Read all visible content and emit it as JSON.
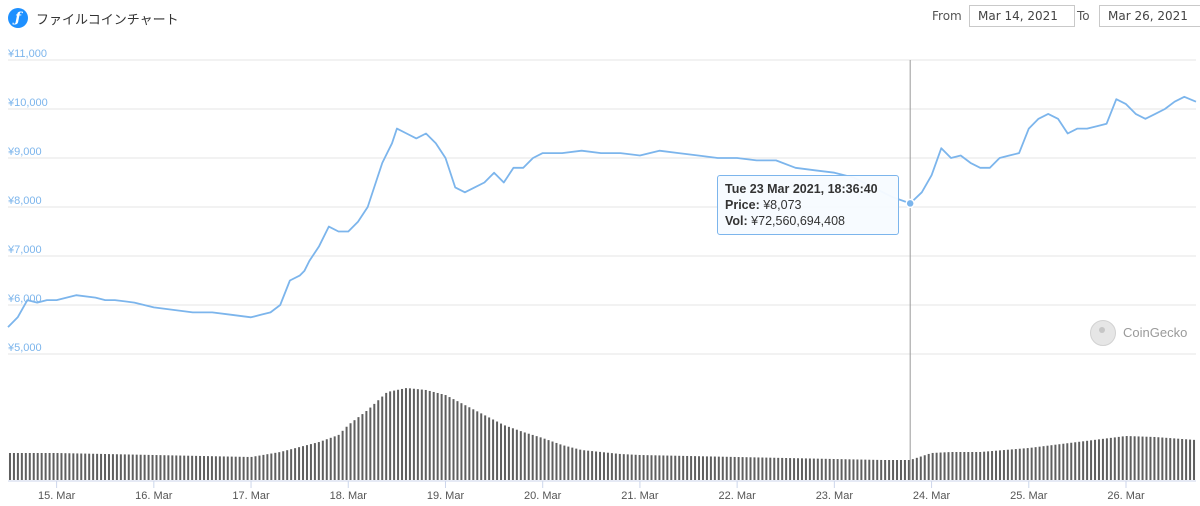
{
  "header": {
    "title": "ファイルコインチャート",
    "from_label": "From",
    "from_value": "Mar 14, 2021",
    "to_label": "To",
    "to_value": "Mar 26, 2021"
  },
  "watermark": "CoinGecko",
  "tooltip": {
    "date": "Tue 23 Mar 2021, 18:36:40",
    "price_label": "Price:",
    "price_value": "¥8,073",
    "vol_label": "Vol:",
    "vol_value": "¥72,560,694,408"
  },
  "chart_data": {
    "type": "line",
    "title": "ファイルコインチャート",
    "ylim": [
      5000,
      11000
    ],
    "yticks": [
      5000,
      6000,
      7000,
      8000,
      9000,
      10000,
      11000
    ],
    "ytick_labels": [
      "¥5,000",
      "¥6,000",
      "¥7,000",
      "¥8,000",
      "¥9,000",
      "¥10,000",
      "¥11,000"
    ],
    "xlim": [
      14.5,
      26.72
    ],
    "xticks": [
      15,
      16,
      17,
      18,
      19,
      20,
      21,
      22,
      23,
      24,
      25,
      26
    ],
    "xtick_labels": [
      "15. Mar",
      "16. Mar",
      "17. Mar",
      "18. Mar",
      "19. Mar",
      "20. Mar",
      "21. Mar",
      "22. Mar",
      "23. Mar",
      "24. Mar",
      "25. Mar",
      "26. Mar"
    ],
    "grid": true,
    "line_color": "#7cb5ec",
    "crosshair_x": 23.78,
    "marker": {
      "x": 23.78,
      "y": 8073
    },
    "price_series": {
      "name": "Price",
      "x": [
        14.5,
        14.6,
        14.7,
        14.8,
        14.9,
        15.0,
        15.2,
        15.4,
        15.5,
        15.6,
        15.8,
        16.0,
        16.2,
        16.4,
        16.6,
        16.8,
        17.0,
        17.1,
        17.2,
        17.3,
        17.4,
        17.5,
        17.55,
        17.6,
        17.7,
        17.8,
        17.9,
        18.0,
        18.1,
        18.2,
        18.3,
        18.35,
        18.4,
        18.45,
        18.5,
        18.6,
        18.7,
        18.8,
        18.9,
        19.0,
        19.1,
        19.2,
        19.3,
        19.4,
        19.5,
        19.6,
        19.7,
        19.8,
        19.9,
        20.0,
        20.1,
        20.2,
        20.4,
        20.6,
        20.8,
        21.0,
        21.2,
        21.4,
        21.6,
        21.8,
        22.0,
        22.2,
        22.4,
        22.6,
        22.8,
        23.0,
        23.2,
        23.4,
        23.6,
        23.78,
        23.9,
        24.0,
        24.1,
        24.2,
        24.3,
        24.4,
        24.5,
        24.6,
        24.7,
        24.8,
        24.9,
        25.0,
        25.1,
        25.2,
        25.3,
        25.4,
        25.5,
        25.6,
        25.7,
        25.8,
        25.9,
        26.0,
        26.1,
        26.2,
        26.3,
        26.4,
        26.5,
        26.6,
        26.72
      ],
      "y": [
        5550,
        5750,
        6100,
        6050,
        6100,
        6100,
        6200,
        6150,
        6100,
        6100,
        6050,
        5950,
        5900,
        5850,
        5850,
        5800,
        5750,
        5800,
        5850,
        6000,
        6500,
        6600,
        6700,
        6900,
        7200,
        7600,
        7500,
        7500,
        7700,
        8000,
        8600,
        8900,
        9100,
        9300,
        9600,
        9500,
        9400,
        9500,
        9300,
        9000,
        8400,
        8300,
        8400,
        8500,
        8700,
        8500,
        8800,
        8800,
        9000,
        9100,
        9100,
        9100,
        9150,
        9100,
        9100,
        9050,
        9150,
        9100,
        9050,
        9000,
        9000,
        8950,
        8950,
        8800,
        8750,
        8700,
        8600,
        8400,
        8200,
        8073,
        8300,
        8650,
        9200,
        9000,
        9050,
        8900,
        8800,
        8800,
        9000,
        9050,
        9100,
        9600,
        9800,
        9900,
        9800,
        9500,
        9600,
        9600,
        9650,
        9700,
        10200,
        10100,
        9900,
        9800,
        9900,
        10000,
        10150,
        10250,
        10150
      ]
    },
    "volume_series": {
      "name": "Vol",
      "x": [
        14.5,
        15.0,
        15.5,
        16.0,
        16.5,
        17.0,
        17.3,
        17.5,
        17.7,
        17.9,
        18.0,
        18.2,
        18.4,
        18.6,
        18.8,
        19.0,
        19.2,
        19.4,
        19.6,
        19.8,
        20.0,
        20.2,
        20.4,
        20.6,
        20.8,
        21.0,
        21.5,
        22.0,
        22.5,
        23.0,
        23.5,
        23.78,
        24.0,
        24.2,
        24.5,
        25.0,
        25.5,
        26.0,
        26.3,
        26.72
      ],
      "y": [
        27,
        27,
        26,
        25,
        24,
        23,
        28,
        33,
        38,
        45,
        55,
        70,
        88,
        92,
        90,
        85,
        75,
        65,
        55,
        48,
        42,
        35,
        30,
        28,
        26,
        25,
        24,
        23,
        22,
        21,
        20,
        20,
        27,
        28,
        28,
        32,
        38,
        44,
        43,
        40
      ]
    },
    "volume_ylim": [
      0,
      100
    ]
  }
}
